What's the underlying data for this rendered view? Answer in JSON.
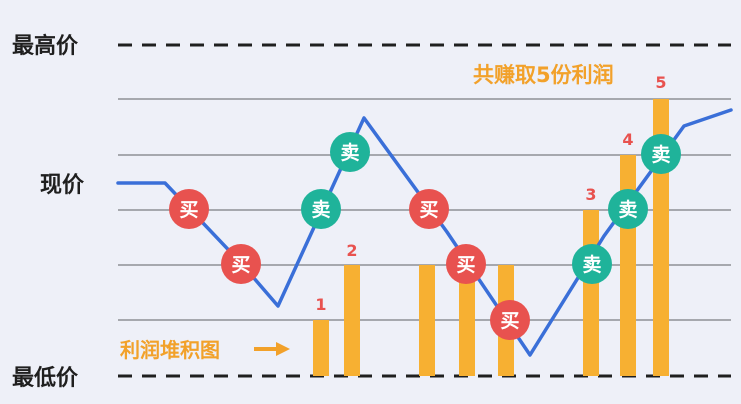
{
  "labels": {
    "highest_price": "最高价",
    "current_price": "现价",
    "lowest_price": "最低价",
    "profit_pile": "利润堆积图",
    "total_profit": "共赚取5份利润"
  },
  "markers": {
    "buy": "买",
    "sell": "卖"
  },
  "bar_numbers": [
    "1",
    "2",
    "3",
    "4",
    "5"
  ],
  "colors": {
    "background": "#eef0f8",
    "price_line": "#3a6fd8",
    "bar": "#f7b032",
    "bar_number": "#e8524f",
    "buy": "#e8524f",
    "sell": "#1fb39a",
    "grid": "#a6a8ae",
    "dashed": "#1f1f1f",
    "text": "#1f1f1f",
    "annotation": "#f2a12a"
  }
}
